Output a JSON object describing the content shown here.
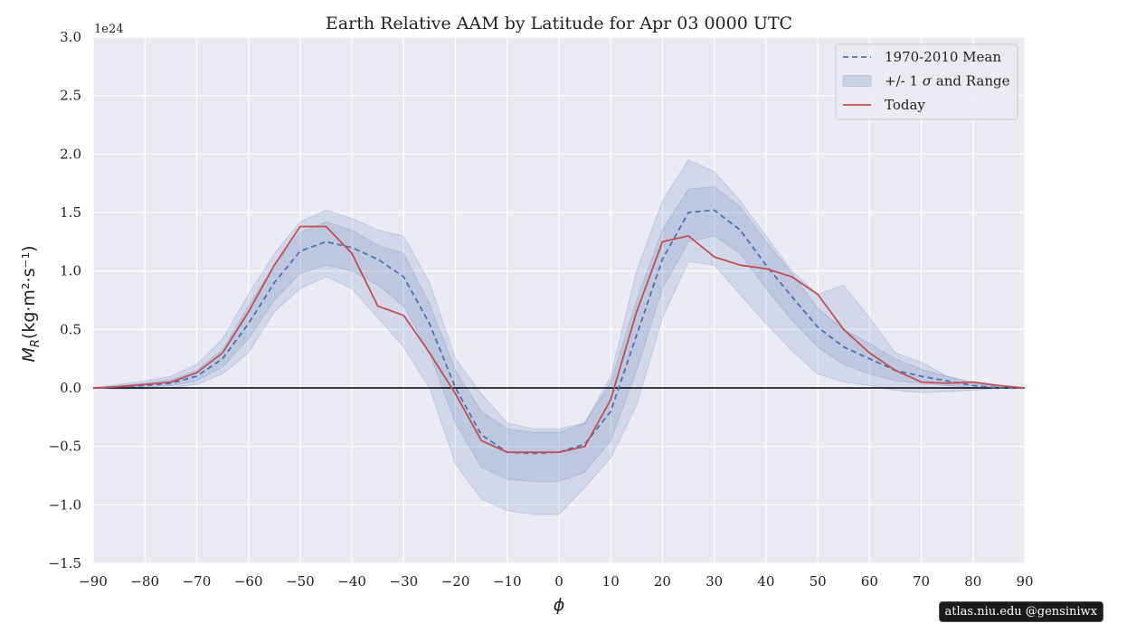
{
  "chart_data": {
    "type": "line",
    "title": "Earth Relative AAM by Latitude for Apr 03 0000 UTC",
    "xlabel": "ϕ",
    "ylabel": "M_R (kg·m²·s⁻¹)",
    "ylabel_main": "M",
    "ylabel_sub": "R",
    "ylabel_units": "(kg·m²·s⁻¹)",
    "y_scale_label": "1e24",
    "xlim": [
      -90,
      90
    ],
    "ylim": [
      -1.5,
      3.0
    ],
    "xticks": [
      -90,
      -80,
      -70,
      -60,
      -50,
      -40,
      -30,
      -20,
      -10,
      0,
      10,
      20,
      30,
      40,
      50,
      60,
      70,
      80,
      90
    ],
    "yticks": [
      -1.5,
      -1.0,
      -0.5,
      0.0,
      0.5,
      1.0,
      1.5,
      2.0,
      2.5,
      3.0
    ],
    "xtick_labels": [
      "−90",
      "−80",
      "−70",
      "−60",
      "−50",
      "−40",
      "−30",
      "−20",
      "−10",
      "0",
      "10",
      "20",
      "30",
      "40",
      "50",
      "60",
      "70",
      "80",
      "90"
    ],
    "ytick_labels": [
      "−1.5",
      "−1.0",
      "−0.5",
      "0.0",
      "0.5",
      "1.0",
      "1.5",
      "2.0",
      "2.5",
      "3.0"
    ],
    "grid": true,
    "legend_position": "top-right",
    "x": [
      -90,
      -85,
      -80,
      -75,
      -70,
      -65,
      -60,
      -55,
      -50,
      -45,
      -40,
      -35,
      -30,
      -25,
      -20,
      -15,
      -10,
      -5,
      0,
      5,
      10,
      15,
      20,
      25,
      30,
      35,
      40,
      45,
      50,
      55,
      60,
      65,
      70,
      75,
      80,
      85,
      90
    ],
    "series": [
      {
        "name": "1970-2010 Mean",
        "style": "dashed",
        "color": "#4c72b0",
        "values": [
          0.0,
          0.01,
          0.02,
          0.04,
          0.1,
          0.25,
          0.55,
          0.9,
          1.17,
          1.25,
          1.2,
          1.1,
          0.95,
          0.55,
          0.0,
          -0.4,
          -0.55,
          -0.56,
          -0.55,
          -0.48,
          -0.2,
          0.45,
          1.1,
          1.5,
          1.52,
          1.35,
          1.05,
          0.78,
          0.52,
          0.35,
          0.25,
          0.15,
          0.1,
          0.06,
          0.02,
          0.0,
          0.0
        ]
      },
      {
        "name": "Today",
        "style": "solid",
        "color": "#c44e52",
        "values": [
          0.0,
          0.01,
          0.03,
          0.05,
          0.13,
          0.3,
          0.65,
          1.05,
          1.38,
          1.38,
          1.15,
          0.7,
          0.62,
          0.3,
          -0.05,
          -0.45,
          -0.55,
          -0.55,
          -0.55,
          -0.5,
          -0.1,
          0.65,
          1.25,
          1.3,
          1.12,
          1.05,
          1.02,
          0.95,
          0.8,
          0.5,
          0.3,
          0.15,
          0.05,
          0.04,
          0.05,
          0.02,
          0.0
        ]
      }
    ],
    "bands": [
      {
        "name": "+/- 1 σ and Range",
        "kind": "range",
        "color": "#4c72b0",
        "lower": [
          0.0,
          -0.01,
          -0.01,
          0.0,
          0.03,
          0.12,
          0.3,
          0.65,
          0.85,
          0.95,
          0.85,
          0.6,
          0.35,
          0.0,
          -0.65,
          -0.95,
          -1.05,
          -1.08,
          -1.08,
          -0.85,
          -0.6,
          -0.15,
          0.6,
          1.08,
          1.05,
          0.8,
          0.55,
          0.32,
          0.12,
          0.05,
          0.02,
          -0.02,
          -0.04,
          -0.03,
          -0.02,
          0.0,
          0.0
        ],
        "upper": [
          0.0,
          0.03,
          0.06,
          0.1,
          0.2,
          0.42,
          0.8,
          1.15,
          1.42,
          1.52,
          1.45,
          1.35,
          1.3,
          0.9,
          0.25,
          -0.05,
          -0.3,
          -0.35,
          -0.35,
          -0.3,
          0.1,
          1.0,
          1.6,
          1.95,
          1.85,
          1.6,
          1.3,
          1.0,
          0.8,
          0.88,
          0.6,
          0.3,
          0.22,
          0.1,
          0.05,
          0.01,
          0.0
        ]
      },
      {
        "name": "+/- 1 σ",
        "kind": "sigma",
        "color": "#4c72b0",
        "lower": [
          0.0,
          0.0,
          0.01,
          0.02,
          0.06,
          0.18,
          0.42,
          0.75,
          0.98,
          1.05,
          1.0,
          0.88,
          0.7,
          0.3,
          -0.3,
          -0.68,
          -0.78,
          -0.8,
          -0.8,
          -0.72,
          -0.45,
          0.15,
          0.85,
          1.25,
          1.3,
          1.15,
          0.85,
          0.58,
          0.35,
          0.2,
          0.12,
          0.06,
          0.04,
          0.02,
          0.0,
          0.0,
          0.0
        ],
        "upper": [
          0.0,
          0.02,
          0.04,
          0.07,
          0.15,
          0.33,
          0.7,
          1.05,
          1.33,
          1.42,
          1.35,
          1.22,
          1.15,
          0.72,
          0.15,
          -0.2,
          -0.35,
          -0.38,
          -0.38,
          -0.3,
          0.05,
          0.75,
          1.35,
          1.7,
          1.72,
          1.55,
          1.25,
          0.98,
          0.68,
          0.5,
          0.38,
          0.25,
          0.16,
          0.1,
          0.04,
          0.01,
          0.0
        ]
      }
    ],
    "legend": {
      "entries": [
        {
          "label": "1970-2010 Mean",
          "kind": "dashed-line",
          "color": "#4c72b0"
        },
        {
          "label_pre": "+/- 1 ",
          "label_sym": "σ",
          "label_post": " and Range",
          "kind": "patch",
          "color": "#4c72b0"
        },
        {
          "label": "Today",
          "kind": "solid-line",
          "color": "#c44e52"
        }
      ]
    },
    "colors": {
      "plot_background": "#eaeaf2",
      "grid": "#ffffff",
      "zero_line": "#000000"
    }
  },
  "watermark": "atlas.niu.edu  @gensiniwx"
}
